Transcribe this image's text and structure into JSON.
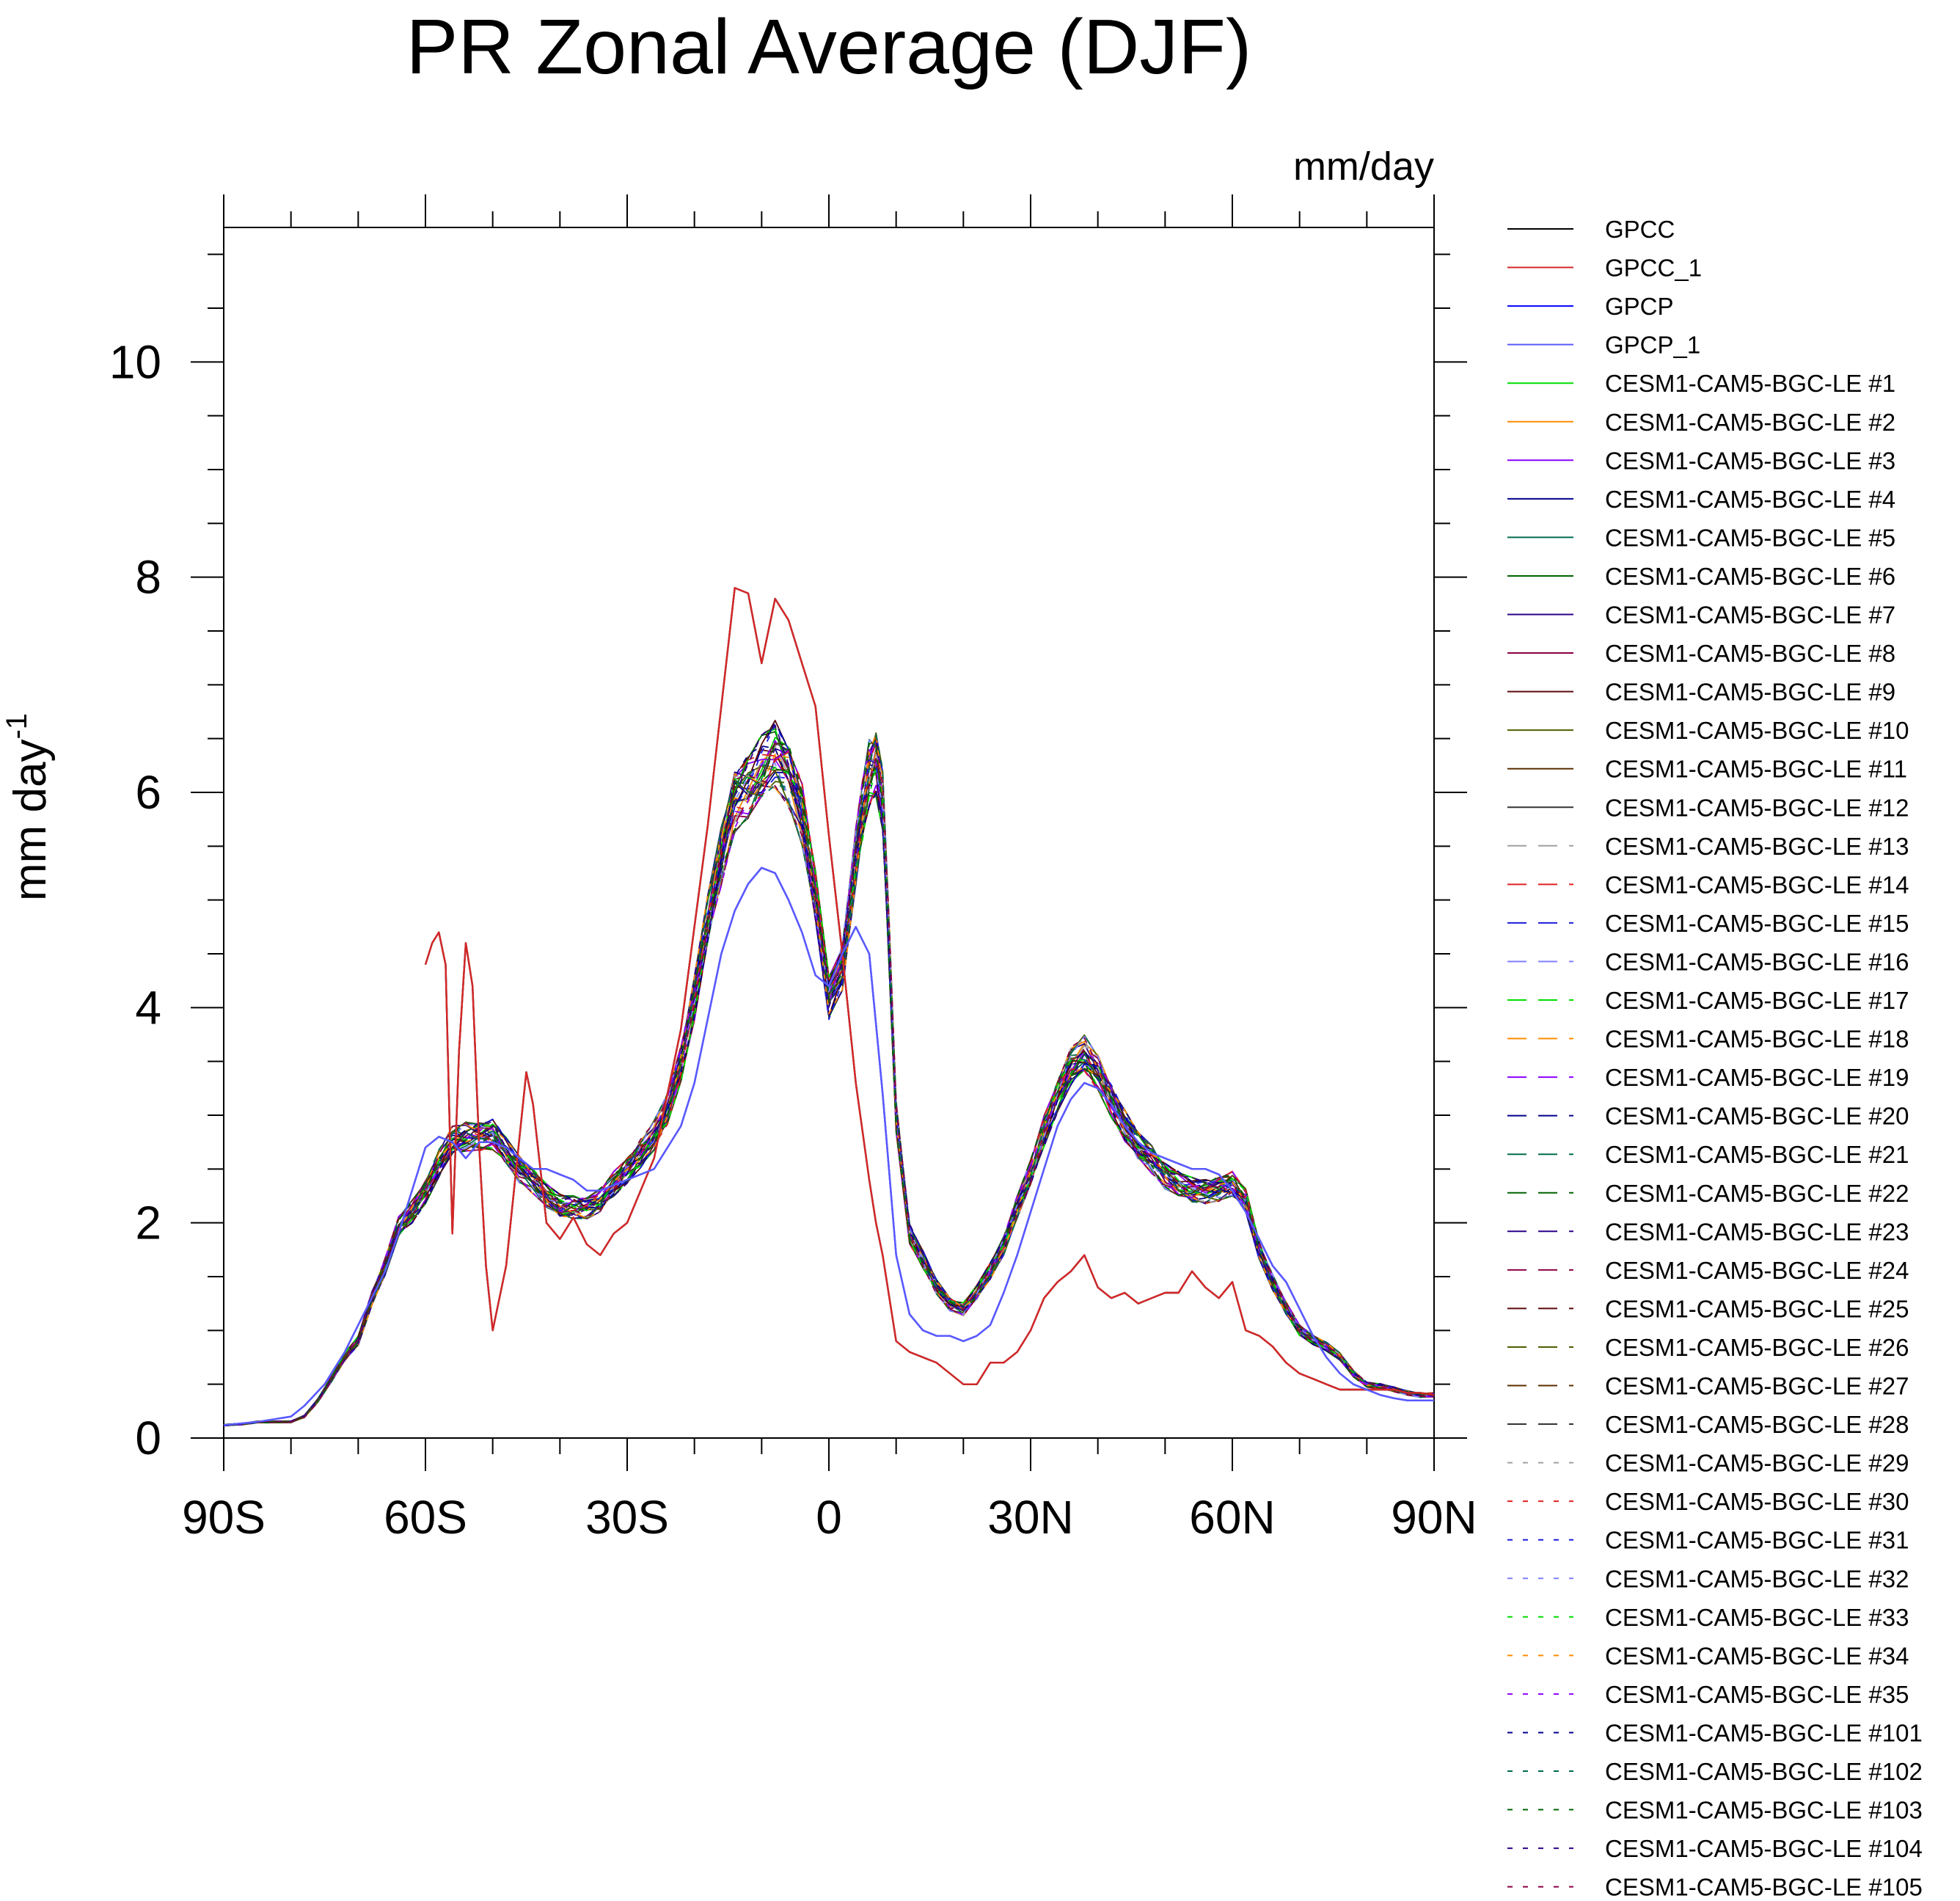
{
  "chart_data": {
    "type": "line",
    "title": "PR Zonal Average (DJF)",
    "units_label": "mm/day",
    "ylabel": "mm day",
    "ylabel_superscript": "-1",
    "xlabel": "",
    "xlim": [
      -90,
      90
    ],
    "ylim": [
      0,
      11.25
    ],
    "x_ticks": [
      {
        "value": -90,
        "label": "90S"
      },
      {
        "value": -60,
        "label": "60S"
      },
      {
        "value": -30,
        "label": "30S"
      },
      {
        "value": 0,
        "label": "0"
      },
      {
        "value": 30,
        "label": "30N"
      },
      {
        "value": 60,
        "label": "60N"
      },
      {
        "value": 90,
        "label": "90N"
      }
    ],
    "y_ticks": [
      {
        "value": 0,
        "label": "0"
      },
      {
        "value": 2,
        "label": "2"
      },
      {
        "value": 4,
        "label": "4"
      },
      {
        "value": 6,
        "label": "6"
      },
      {
        "value": 8,
        "label": "8"
      },
      {
        "value": 10,
        "label": "10"
      }
    ],
    "legend_placement": "right",
    "series": [
      {
        "name": "GPCC",
        "color": "#000000",
        "style": "solid",
        "x": [
          -60,
          -59,
          -58,
          -57,
          -56,
          -55,
          -54,
          -53,
          -52,
          -51,
          -50,
          -48,
          -46,
          -45,
          -44,
          -42,
          -40,
          -38,
          -36,
          -34,
          -32,
          -30,
          -26,
          -22,
          -18,
          -14,
          -12,
          -10,
          -8,
          -6,
          -4,
          -2,
          0,
          2,
          4,
          6,
          7,
          8,
          10,
          12,
          14,
          16,
          18,
          20,
          22,
          24,
          26,
          28,
          30,
          32,
          34,
          36,
          38,
          40,
          42,
          44,
          46,
          48,
          50,
          52,
          54,
          56,
          58,
          60,
          62,
          64,
          66,
          68,
          70,
          72,
          74,
          76,
          78,
          80,
          82,
          84,
          86,
          88,
          90
        ],
        "values": [
          4.4,
          4.6,
          4.7,
          4.4,
          1.9,
          3.6,
          4.6,
          4.2,
          2.7,
          1.6,
          1.0,
          1.6,
          2.8,
          3.4,
          3.1,
          2.0,
          1.85,
          2.05,
          1.8,
          1.7,
          1.9,
          2.0,
          2.6,
          3.8,
          5.7,
          7.9,
          7.85,
          7.2,
          7.8,
          7.6,
          7.2,
          6.8,
          5.6,
          4.5,
          3.3,
          2.4,
          2.0,
          1.7,
          0.9,
          0.8,
          0.75,
          0.7,
          0.6,
          0.5,
          0.5,
          0.7,
          0.7,
          0.8,
          1.0,
          1.3,
          1.45,
          1.55,
          1.7,
          1.4,
          1.3,
          1.35,
          1.25,
          1.3,
          1.35,
          1.35,
          1.55,
          1.4,
          1.3,
          1.45,
          1.0,
          0.95,
          0.85,
          0.7,
          0.6,
          0.55,
          0.5,
          0.45,
          0.45,
          0.45,
          0.45,
          0.45,
          0.42,
          0.42,
          0.4
        ]
      },
      {
        "name": "GPCC_1",
        "color": "#d62728",
        "style": "solid",
        "x": [
          -60,
          -59,
          -58,
          -57,
          -56,
          -55,
          -54,
          -53,
          -52,
          -51,
          -50,
          -48,
          -46,
          -45,
          -44,
          -42,
          -40,
          -38,
          -36,
          -34,
          -32,
          -30,
          -26,
          -22,
          -18,
          -14,
          -12,
          -10,
          -8,
          -6,
          -4,
          -2,
          0,
          2,
          4,
          6,
          7,
          8,
          10,
          12,
          14,
          16,
          18,
          20,
          22,
          24,
          26,
          28,
          30,
          32,
          34,
          36,
          38,
          40,
          42,
          44,
          46,
          48,
          50,
          52,
          54,
          56,
          58,
          60,
          62,
          64,
          66,
          68,
          70,
          72,
          74,
          76,
          78,
          80,
          82,
          84,
          86,
          88,
          90
        ],
        "values": [
          4.4,
          4.6,
          4.7,
          4.4,
          1.9,
          3.6,
          4.6,
          4.2,
          2.7,
          1.6,
          1.0,
          1.6,
          2.8,
          3.4,
          3.1,
          2.0,
          1.85,
          2.05,
          1.8,
          1.7,
          1.9,
          2.0,
          2.6,
          3.8,
          5.7,
          7.9,
          7.85,
          7.2,
          7.8,
          7.6,
          7.2,
          6.8,
          5.6,
          4.5,
          3.3,
          2.4,
          2.0,
          1.7,
          0.9,
          0.8,
          0.75,
          0.7,
          0.6,
          0.5,
          0.5,
          0.7,
          0.7,
          0.8,
          1.0,
          1.3,
          1.45,
          1.55,
          1.7,
          1.4,
          1.3,
          1.35,
          1.25,
          1.3,
          1.35,
          1.35,
          1.55,
          1.4,
          1.3,
          1.45,
          1.0,
          0.95,
          0.85,
          0.7,
          0.6,
          0.55,
          0.5,
          0.45,
          0.45,
          0.45,
          0.45,
          0.45,
          0.42,
          0.42,
          0.4
        ]
      },
      {
        "name": "GPCP",
        "color": "#0000ff",
        "style": "solid",
        "x": [
          -90,
          -85,
          -80,
          -78,
          -75,
          -72,
          -70,
          -68,
          -66,
          -64,
          -62,
          -60,
          -58,
          -56,
          -54,
          -52,
          -50,
          -48,
          -46,
          -44,
          -42,
          -40,
          -38,
          -36,
          -34,
          -32,
          -30,
          -26,
          -22,
          -20,
          -18,
          -16,
          -14,
          -12,
          -10,
          -8,
          -6,
          -4,
          -2,
          0,
          2,
          4,
          6,
          8,
          10,
          12,
          14,
          16,
          18,
          20,
          22,
          24,
          26,
          28,
          30,
          32,
          34,
          36,
          38,
          40,
          42,
          44,
          46,
          48,
          50,
          52,
          54,
          56,
          58,
          60,
          62,
          64,
          66,
          68,
          70,
          72,
          74,
          76,
          78,
          80,
          82,
          84,
          86,
          88,
          90
        ],
        "values": [
          0.12,
          0.15,
          0.2,
          0.3,
          0.5,
          0.8,
          1.05,
          1.3,
          1.55,
          1.9,
          2.3,
          2.7,
          2.8,
          2.75,
          2.6,
          2.75,
          2.75,
          2.7,
          2.6,
          2.5,
          2.5,
          2.45,
          2.4,
          2.3,
          2.3,
          2.35,
          2.4,
          2.5,
          2.9,
          3.3,
          3.9,
          4.5,
          4.9,
          5.15,
          5.3,
          5.25,
          5.0,
          4.7,
          4.3,
          4.2,
          4.5,
          4.75,
          4.5,
          3.2,
          1.7,
          1.15,
          1.0,
          0.95,
          0.95,
          0.9,
          0.95,
          1.05,
          1.35,
          1.7,
          2.1,
          2.5,
          2.9,
          3.15,
          3.3,
          3.25,
          3.1,
          2.9,
          2.75,
          2.65,
          2.6,
          2.55,
          2.5,
          2.5,
          2.45,
          2.3,
          2.1,
          1.85,
          1.6,
          1.45,
          1.2,
          0.95,
          0.75,
          0.6,
          0.5,
          0.45,
          0.4,
          0.37,
          0.35,
          0.35,
          0.35
        ]
      },
      {
        "name": "GPCP_1",
        "color": "#5a5aff",
        "style": "solid",
        "x": [
          -90,
          -85,
          -80,
          -78,
          -75,
          -72,
          -70,
          -68,
          -66,
          -64,
          -62,
          -60,
          -58,
          -56,
          -54,
          -52,
          -50,
          -48,
          -46,
          -44,
          -42,
          -40,
          -38,
          -36,
          -34,
          -32,
          -30,
          -26,
          -22,
          -20,
          -18,
          -16,
          -14,
          -12,
          -10,
          -8,
          -6,
          -4,
          -2,
          0,
          2,
          4,
          6,
          8,
          10,
          12,
          14,
          16,
          18,
          20,
          22,
          24,
          26,
          28,
          30,
          32,
          34,
          36,
          38,
          40,
          42,
          44,
          46,
          48,
          50,
          52,
          54,
          56,
          58,
          60,
          62,
          64,
          66,
          68,
          70,
          72,
          74,
          76,
          78,
          80,
          82,
          84,
          86,
          88,
          90
        ],
        "values": [
          0.12,
          0.15,
          0.2,
          0.3,
          0.5,
          0.8,
          1.05,
          1.3,
          1.55,
          1.9,
          2.3,
          2.7,
          2.8,
          2.75,
          2.6,
          2.75,
          2.75,
          2.7,
          2.6,
          2.5,
          2.5,
          2.45,
          2.4,
          2.3,
          2.3,
          2.35,
          2.4,
          2.5,
          2.9,
          3.3,
          3.9,
          4.5,
          4.9,
          5.15,
          5.3,
          5.25,
          5.0,
          4.7,
          4.3,
          4.2,
          4.5,
          4.75,
          4.5,
          3.2,
          1.7,
          1.15,
          1.0,
          0.95,
          0.95,
          0.9,
          0.95,
          1.05,
          1.35,
          1.7,
          2.1,
          2.5,
          2.9,
          3.15,
          3.3,
          3.25,
          3.1,
          2.9,
          2.75,
          2.65,
          2.6,
          2.55,
          2.5,
          2.5,
          2.45,
          2.3,
          2.1,
          1.85,
          1.6,
          1.45,
          1.2,
          0.95,
          0.75,
          0.6,
          0.5,
          0.45,
          0.4,
          0.37,
          0.35,
          0.35,
          0.35
        ]
      },
      {
        "name": "CESM1-CAM5-BGC-LE #1",
        "color": "#00dd00",
        "style": "solid"
      },
      {
        "name": "CESM1-CAM5-BGC-LE #2",
        "color": "#ff8c00",
        "style": "solid"
      },
      {
        "name": "CESM1-CAM5-BGC-LE #3",
        "color": "#8a00ff",
        "style": "solid"
      },
      {
        "name": "CESM1-CAM5-BGC-LE #4",
        "color": "#00008b",
        "style": "solid"
      },
      {
        "name": "CESM1-CAM5-BGC-LE #5",
        "color": "#006b4f",
        "style": "solid"
      },
      {
        "name": "CESM1-CAM5-BGC-LE #6",
        "color": "#006400",
        "style": "solid"
      },
      {
        "name": "CESM1-CAM5-BGC-LE #7",
        "color": "#2d0087",
        "style": "solid"
      },
      {
        "name": "CESM1-CAM5-BGC-LE #8",
        "color": "#8b0044",
        "style": "solid"
      },
      {
        "name": "CESM1-CAM5-BGC-LE #9",
        "color": "#5a0a0a",
        "style": "solid"
      },
      {
        "name": "CESM1-CAM5-BGC-LE #10",
        "color": "#4b5f00",
        "style": "solid"
      },
      {
        "name": "CESM1-CAM5-BGC-LE #11",
        "color": "#5c2e00",
        "style": "solid"
      },
      {
        "name": "CESM1-CAM5-BGC-LE #12",
        "color": "#333333",
        "style": "solid"
      },
      {
        "name": "CESM1-CAM5-BGC-LE #13",
        "color": "#a0a0a0",
        "style": "dashed"
      },
      {
        "name": "CESM1-CAM5-BGC-LE #14",
        "color": "#e02020",
        "style": "dashed"
      },
      {
        "name": "CESM1-CAM5-BGC-LE #15",
        "color": "#1c1cdc",
        "style": "dashed"
      },
      {
        "name": "CESM1-CAM5-BGC-LE #16",
        "color": "#8080ff",
        "style": "dashed"
      },
      {
        "name": "CESM1-CAM5-BGC-LE #17",
        "color": "#00dd00",
        "style": "dashed"
      },
      {
        "name": "CESM1-CAM5-BGC-LE #18",
        "color": "#ff8c00",
        "style": "dashed"
      },
      {
        "name": "CESM1-CAM5-BGC-LE #19",
        "color": "#8a00ff",
        "style": "dashed"
      },
      {
        "name": "CESM1-CAM5-BGC-LE #20",
        "color": "#00008b",
        "style": "dashed"
      },
      {
        "name": "CESM1-CAM5-BGC-LE #21",
        "color": "#006b4f",
        "style": "dashed"
      },
      {
        "name": "CESM1-CAM5-BGC-LE #22",
        "color": "#006400",
        "style": "dashed"
      },
      {
        "name": "CESM1-CAM5-BGC-LE #23",
        "color": "#2d0087",
        "style": "dashed"
      },
      {
        "name": "CESM1-CAM5-BGC-LE #24",
        "color": "#8b0044",
        "style": "dashed"
      },
      {
        "name": "CESM1-CAM5-BGC-LE #25",
        "color": "#5a0a0a",
        "style": "dashed"
      },
      {
        "name": "CESM1-CAM5-BGC-LE #26",
        "color": "#4b5f00",
        "style": "dashed"
      },
      {
        "name": "CESM1-CAM5-BGC-LE #27",
        "color": "#5c2e00",
        "style": "dashed"
      },
      {
        "name": "CESM1-CAM5-BGC-LE #28",
        "color": "#333333",
        "style": "dashed"
      },
      {
        "name": "CESM1-CAM5-BGC-LE #29",
        "color": "#a0a0a0",
        "style": "dotted"
      },
      {
        "name": "CESM1-CAM5-BGC-LE #30",
        "color": "#e02020",
        "style": "dotted"
      },
      {
        "name": "CESM1-CAM5-BGC-LE #31",
        "color": "#1c1cdc",
        "style": "dotted"
      },
      {
        "name": "CESM1-CAM5-BGC-LE #32",
        "color": "#8080ff",
        "style": "dotted"
      },
      {
        "name": "CESM1-CAM5-BGC-LE #33",
        "color": "#00dd00",
        "style": "dotted"
      },
      {
        "name": "CESM1-CAM5-BGC-LE #34",
        "color": "#ff8c00",
        "style": "dotted"
      },
      {
        "name": "CESM1-CAM5-BGC-LE #35",
        "color": "#8a00ff",
        "style": "dotted"
      },
      {
        "name": "CESM1-CAM5-BGC-LE #101",
        "color": "#00008b",
        "style": "dotted"
      },
      {
        "name": "CESM1-CAM5-BGC-LE #102",
        "color": "#006b4f",
        "style": "dotted"
      },
      {
        "name": "CESM1-CAM5-BGC-LE #103",
        "color": "#006400",
        "style": "dotted"
      },
      {
        "name": "CESM1-CAM5-BGC-LE #104",
        "color": "#2d0087",
        "style": "dotted"
      },
      {
        "name": "CESM1-CAM5-BGC-LE #105",
        "color": "#8b0044",
        "style": "dotted"
      }
    ],
    "ensemble_profile": {
      "x": [
        -90,
        -87,
        -85,
        -83,
        -80,
        -78,
        -76,
        -74,
        -72,
        -70,
        -68,
        -66,
        -64,
        -62,
        -60,
        -58,
        -56,
        -54,
        -52,
        -50,
        -48,
        -46,
        -44,
        -42,
        -40,
        -38,
        -36,
        -34,
        -32,
        -30,
        -28,
        -26,
        -24,
        -22,
        -20,
        -18,
        -16,
        -14,
        -12,
        -10,
        -8,
        -6,
        -4,
        -2,
        0,
        2,
        4,
        5,
        6,
        7,
        8,
        9,
        10,
        12,
        14,
        16,
        18,
        20,
        22,
        24,
        26,
        28,
        30,
        32,
        34,
        36,
        38,
        40,
        42,
        44,
        46,
        48,
        50,
        52,
        54,
        56,
        58,
        60,
        62,
        64,
        66,
        68,
        70,
        72,
        74,
        76,
        78,
        80,
        82,
        84,
        86,
        88,
        90
      ],
      "values": [
        0.12,
        0.13,
        0.15,
        0.15,
        0.15,
        0.2,
        0.35,
        0.55,
        0.75,
        0.9,
        1.3,
        1.6,
        1.95,
        2.1,
        2.3,
        2.55,
        2.75,
        2.8,
        2.82,
        2.82,
        2.65,
        2.5,
        2.4,
        2.25,
        2.15,
        2.15,
        2.15,
        2.2,
        2.35,
        2.5,
        2.65,
        2.8,
        3.05,
        3.5,
        4.1,
        4.8,
        5.4,
        5.95,
        6.05,
        6.2,
        6.35,
        6.2,
        5.8,
        5.0,
        4.1,
        4.4,
        5.4,
        5.8,
        6.2,
        6.3,
        5.9,
        4.5,
        3.0,
        1.9,
        1.65,
        1.4,
        1.25,
        1.2,
        1.35,
        1.55,
        1.8,
        2.15,
        2.45,
        2.85,
        3.2,
        3.45,
        3.55,
        3.4,
        3.15,
        2.9,
        2.7,
        2.6,
        2.45,
        2.35,
        2.3,
        2.3,
        2.32,
        2.35,
        2.2,
        1.75,
        1.45,
        1.2,
        1.0,
        0.92,
        0.85,
        0.75,
        0.6,
        0.5,
        0.48,
        0.45,
        0.42,
        0.4,
        0.4
      ]
    }
  }
}
